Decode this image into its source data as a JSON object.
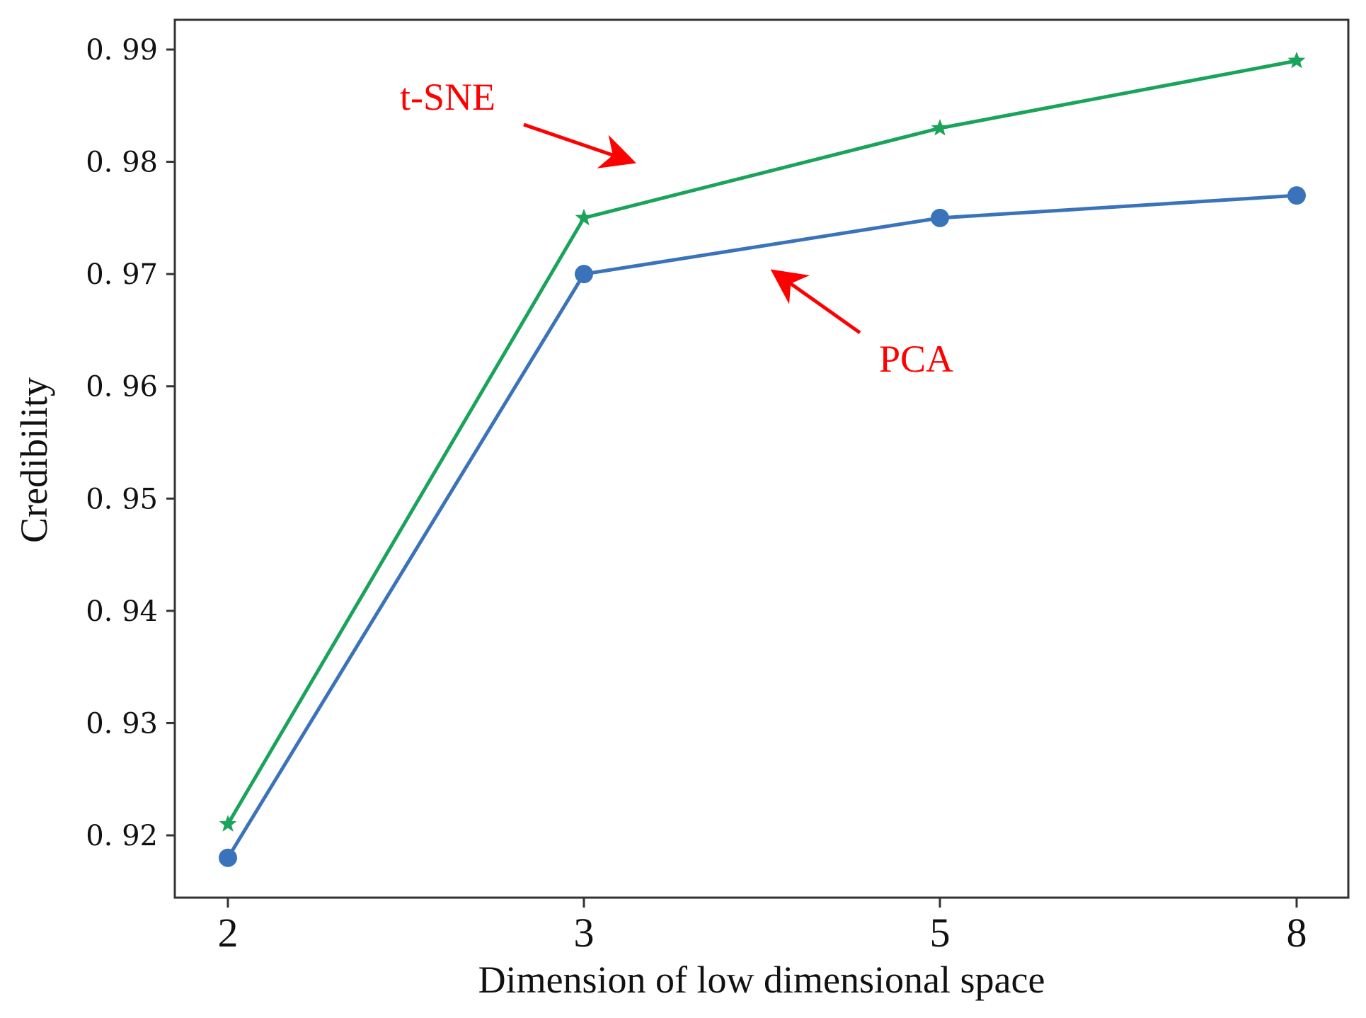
{
  "chart_data": {
    "type": "line",
    "title": "",
    "xlabel": "Dimension of low dimensional space",
    "ylabel": "Credibility",
    "categories": [
      "2",
      "3",
      "5",
      "8"
    ],
    "ylim": [
      0.9125,
      0.9915
    ],
    "yticks": [
      0.92,
      0.93,
      0.94,
      0.95,
      0.96,
      0.97,
      0.98,
      0.99
    ],
    "ytick_labels": [
      "0. 92",
      "0. 93",
      "0. 94",
      "0. 95",
      "0. 96",
      "0. 97",
      "0. 98",
      "0. 99"
    ],
    "grid": false,
    "series": [
      {
        "name": "t-SNE",
        "values": [
          0.921,
          0.975,
          0.983,
          0.989
        ],
        "color": "#1aa35a",
        "marker": "star"
      },
      {
        "name": "PCA",
        "values": [
          0.918,
          0.97,
          0.975,
          0.977
        ],
        "color": "#3a73b9",
        "marker": "circle"
      }
    ],
    "annotations": [
      {
        "text": "t-SNE",
        "color": "#ff0000",
        "points_to": "t-SNE"
      },
      {
        "text": "PCA",
        "color": "#ff0000",
        "points_to": "PCA"
      }
    ]
  }
}
